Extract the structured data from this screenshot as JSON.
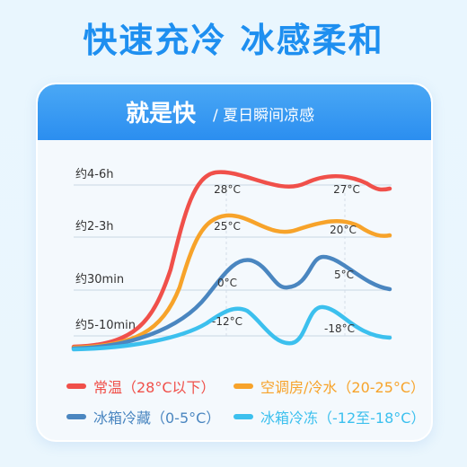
{
  "headline": "快速充冷 冰感柔和",
  "card": {
    "title": "就是快",
    "subtitle": "/ 夏日瞬间凉感"
  },
  "chart_data": {
    "type": "line",
    "y_categories": [
      "约4-6h",
      "约2-3h",
      "约30min",
      "约5-10min"
    ],
    "series": [
      {
        "name": "常温（28°C以下）",
        "color": "#f0504a",
        "value_label": "28°C",
        "end_label": "27°C"
      },
      {
        "name": "空调房/冷水（20-25°C）",
        "color": "#f7a32a",
        "value_label": "25°C",
        "end_label": "20°C"
      },
      {
        "name": "冰箱冷藏（0-5°C）",
        "color": "#4a86c0",
        "value_label": "0°C",
        "end_label": "5°C"
      },
      {
        "name": "冰箱冷冻（-12至-18°C）",
        "color": "#3cc0ee",
        "value_label": "-12°C",
        "end_label": "-18°C"
      }
    ],
    "grid": true,
    "legend": "bottom"
  }
}
